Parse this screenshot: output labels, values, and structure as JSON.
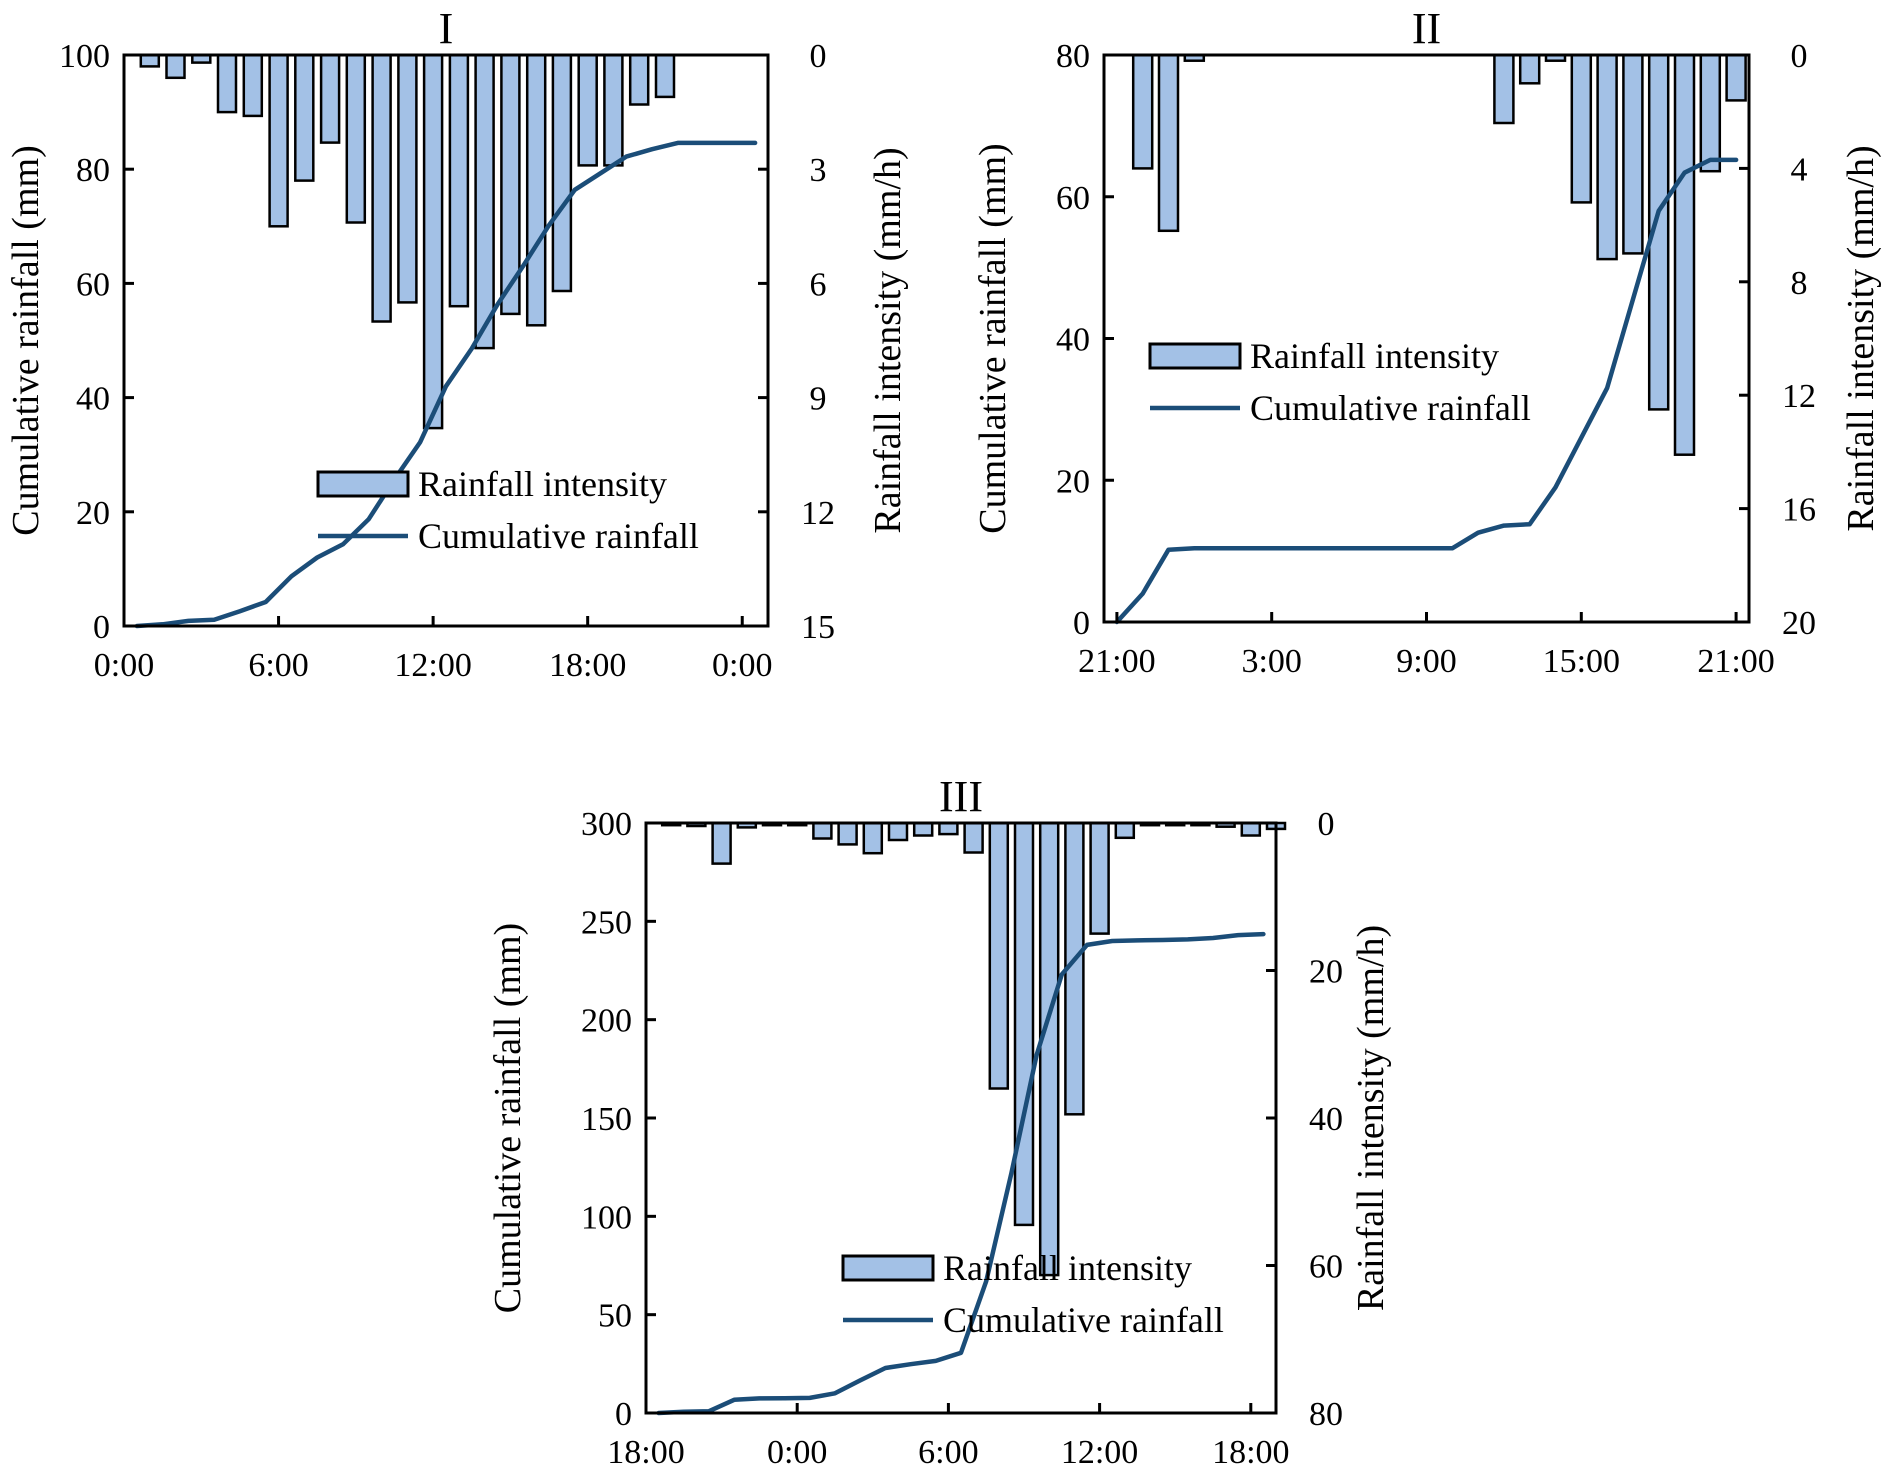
{
  "colors": {
    "bar_fill": "#a3c1e6",
    "bar_edge": "#000000",
    "line": "#1b4d78",
    "axis": "#000000"
  },
  "chart_data": [
    {
      "id": "I",
      "type": "bar+line",
      "title": "I",
      "xlabel": "",
      "ylabel_left": "Cumulative rainfall (mm)",
      "ylabel_right": "Rainfall intensity (mm/h)",
      "xlim": [
        0,
        25
      ],
      "xticks": [
        0,
        6,
        12,
        18,
        24
      ],
      "xtick_labels": [
        "0:00",
        "6:00",
        "12:00",
        "18:00",
        "0:00"
      ],
      "ylim_left": [
        0,
        100
      ],
      "yticks_left": [
        0,
        20,
        40,
        60,
        80,
        100
      ],
      "ylim_right": [
        0,
        15
      ],
      "yticks_right": [
        0,
        3,
        6,
        9,
        12,
        15
      ],
      "right_axis_inverted": true,
      "legend_position": "bottom-right",
      "legend": [
        "Rainfall intensity",
        "Cumulative rainfall"
      ],
      "bars": {
        "name": "Rainfall intensity",
        "unit": "mm/h",
        "x": [
          1,
          2,
          3,
          4,
          5,
          6,
          7,
          8,
          9,
          10,
          11,
          12,
          13,
          14,
          15,
          16,
          17,
          18,
          19,
          20,
          21
        ],
        "values": [
          0.3,
          0.6,
          0.2,
          1.5,
          1.6,
          4.5,
          3.3,
          2.3,
          4.4,
          7.0,
          6.5,
          9.8,
          6.6,
          7.7,
          6.8,
          7.1,
          6.2,
          2.9,
          2.9,
          1.3,
          1.1
        ]
      },
      "line": {
        "name": "Cumulative rainfall",
        "unit": "mm",
        "x": [
          0.5,
          1.5,
          2.5,
          3.5,
          4.5,
          5.5,
          6.5,
          7.5,
          8.5,
          9.5,
          10.5,
          11.5,
          12.5,
          13.5,
          14.5,
          15.5,
          16.5,
          17.5,
          18.5,
          19.5,
          20.5,
          21.5,
          22.5,
          23.5,
          24.5
        ],
        "values": [
          0,
          0.3,
          0.9,
          1.1,
          2.6,
          4.2,
          8.7,
          12.0,
          14.3,
          18.7,
          25.7,
          32.2,
          42.0,
          48.6,
          56.3,
          63.1,
          70.2,
          76.4,
          79.3,
          82.2,
          83.5,
          84.6,
          84.6,
          84.6,
          84.6
        ]
      }
    },
    {
      "id": "II",
      "type": "bar+line",
      "title": "II",
      "xlabel": "",
      "ylabel_left": "Cumulative rainfall (mm)",
      "ylabel_right": "Rainfall intensity (mm/h)",
      "xlim": [
        -0.5,
        24.5
      ],
      "xticks": [
        0,
        6,
        12,
        18,
        24
      ],
      "xtick_labels": [
        "21:00",
        "3:00",
        "9:00",
        "15:00",
        "21:00"
      ],
      "ylim_left": [
        0,
        80
      ],
      "yticks_left": [
        0,
        20,
        40,
        60,
        80
      ],
      "ylim_right": [
        0,
        20
      ],
      "yticks_right": [
        0,
        4,
        8,
        12,
        16,
        20
      ],
      "right_axis_inverted": true,
      "legend_position": "center",
      "legend": [
        "Rainfall intensity",
        "Cumulative rainfall"
      ],
      "bars": {
        "name": "Rainfall intensity",
        "unit": "mm/h",
        "x": [
          1,
          2,
          3,
          15,
          16,
          17,
          18,
          19,
          20,
          21,
          22,
          23,
          24
        ],
        "values": [
          4.0,
          6.2,
          0.2,
          2.4,
          1.0,
          0.2,
          5.2,
          7.2,
          7.0,
          12.5,
          14.1,
          4.1,
          1.6
        ]
      },
      "line": {
        "name": "Cumulative rainfall",
        "unit": "mm",
        "x": [
          0,
          1,
          2,
          3,
          4,
          5,
          6,
          7,
          8,
          9,
          10,
          11,
          12,
          13,
          14,
          15,
          16,
          17,
          18,
          19,
          20,
          21,
          22,
          23,
          24
        ],
        "values": [
          0,
          4.0,
          10.2,
          10.4,
          10.4,
          10.4,
          10.4,
          10.4,
          10.4,
          10.4,
          10.4,
          10.4,
          10.4,
          10.4,
          12.6,
          13.6,
          13.8,
          19.0,
          26.0,
          33.0,
          45.5,
          58.0,
          63.4,
          65.2,
          65.2
        ]
      }
    },
    {
      "id": "III",
      "type": "bar+line",
      "title": "III",
      "xlabel": "",
      "ylabel_left": "Cumulative rainfall (mm)",
      "ylabel_right": "Rainfall intensity (mm/h)",
      "xlim": [
        0,
        25
      ],
      "xticks": [
        0,
        6,
        12,
        18,
        24
      ],
      "xtick_labels": [
        "18:00",
        "0:00",
        "6:00",
        "12:00",
        "18:00"
      ],
      "ylim_left": [
        0,
        300
      ],
      "yticks_left": [
        0,
        50,
        100,
        150,
        200,
        250,
        300
      ],
      "ylim_right": [
        0,
        80
      ],
      "yticks_right": [
        0,
        20,
        40,
        60,
        80
      ],
      "right_axis_inverted": true,
      "legend_position": "bottom-center",
      "legend": [
        "Rainfall intensity",
        "Cumulative rainfall"
      ],
      "bars": {
        "name": "Rainfall intensity",
        "unit": "mm/h",
        "x": [
          1,
          2,
          3,
          4,
          5,
          6,
          7,
          8,
          9,
          10,
          11,
          12,
          13,
          14,
          15,
          16,
          17,
          18,
          19,
          20,
          21,
          22,
          23,
          24,
          25
        ],
        "values": [
          0.3,
          0.4,
          5.5,
          0.6,
          0.3,
          0.3,
          2.1,
          2.9,
          4.1,
          2.3,
          1.7,
          1.5,
          4.0,
          36.0,
          54.5,
          61.3,
          39.5,
          15.0,
          2.0,
          0.3,
          0.3,
          0.3,
          0.5,
          1.7,
          0.8
        ]
      },
      "line": {
        "name": "Cumulative rainfall",
        "unit": "mm",
        "x": [
          0.5,
          1.5,
          2.5,
          3.5,
          4.5,
          5.5,
          6.5,
          7.5,
          8.5,
          9.5,
          10.5,
          11.5,
          12.5,
          13.5,
          14.5,
          15.5,
          16.5,
          17.5,
          18.5,
          19.5,
          20.5,
          21.5,
          22.5,
          23.5,
          24.5
        ],
        "values": [
          0,
          0.6,
          0.9,
          6.7,
          7.4,
          7.5,
          7.7,
          10.0,
          16.6,
          22.9,
          24.8,
          26.5,
          30.6,
          67.0,
          122.0,
          182.0,
          223.0,
          238.0,
          240.0,
          240.3,
          240.5,
          240.8,
          241.5,
          243.0,
          243.5
        ]
      }
    }
  ]
}
